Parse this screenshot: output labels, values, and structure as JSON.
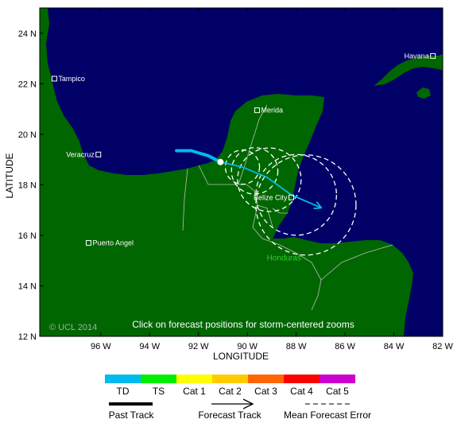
{
  "map": {
    "lon_range": [
      -98.5,
      -82
    ],
    "lat_range": [
      12,
      25
    ],
    "axes": {
      "xlabel": "LONGITUDE",
      "ylabel": "LATITUDE",
      "x_ticks": [
        {
          "value": -96,
          "label": "96 W"
        },
        {
          "value": -94,
          "label": "94 W"
        },
        {
          "value": -92,
          "label": "92 W"
        },
        {
          "value": -90,
          "label": "90 W"
        },
        {
          "value": -88,
          "label": "88 W"
        },
        {
          "value": -86,
          "label": "86 W"
        },
        {
          "value": -84,
          "label": "84 W"
        },
        {
          "value": -82,
          "label": "82 W"
        }
      ],
      "y_ticks": [
        {
          "value": 24,
          "label": "24 N"
        },
        {
          "value": 22,
          "label": "22 N"
        },
        {
          "value": 20,
          "label": "20 N"
        },
        {
          "value": 18,
          "label": "18 N"
        },
        {
          "value": 16,
          "label": "16 N"
        },
        {
          "value": 14,
          "label": "14 N"
        },
        {
          "value": 12,
          "label": "12 N"
        }
      ]
    },
    "colors": {
      "ocean": "#000066",
      "land": "#006600",
      "border": "#bbbbbb",
      "track": "#00bbee",
      "country_label": "#33cc33"
    },
    "cities": [
      {
        "name": "Havana",
        "lon": -82.4,
        "lat": 23.1,
        "label_side": "left"
      },
      {
        "name": "Tampico",
        "lon": -97.9,
        "lat": 22.2,
        "label_side": "right"
      },
      {
        "name": "Merida",
        "lon": -89.6,
        "lat": 20.95,
        "label_side": "right"
      },
      {
        "name": "Veracruz",
        "lon": -96.1,
        "lat": 19.2,
        "label_side": "left"
      },
      {
        "name": "Belize City",
        "lon": -88.2,
        "lat": 17.5,
        "label_side": "left"
      },
      {
        "name": "Puerto Angel",
        "lon": -96.5,
        "lat": 15.7,
        "label_side": "right"
      }
    ],
    "country_labels": [
      {
        "name": "Honduras",
        "lon": -88.5,
        "lat": 15.0
      }
    ],
    "past_track": [
      {
        "lon": -92.9,
        "lat": 19.35
      },
      {
        "lon": -92.3,
        "lat": 19.35
      },
      {
        "lon": -91.6,
        "lat": 19.15
      },
      {
        "lon": -91.1,
        "lat": 18.9
      }
    ],
    "forecast_track": [
      {
        "lon": -91.1,
        "lat": 18.9
      },
      {
        "lon": -90.2,
        "lat": 18.7
      },
      {
        "lon": -89.2,
        "lat": 18.3
      },
      {
        "lon": -88.2,
        "lat": 17.6
      },
      {
        "lon": -87.0,
        "lat": 17.1
      }
    ],
    "current_position": {
      "lon": -91.1,
      "lat": 18.9
    },
    "error_cones": [
      {
        "lon": -90.2,
        "lat": 18.7,
        "r_deg": 0.7
      },
      {
        "lon": -89.7,
        "lat": 18.55,
        "r_deg": 0.95
      },
      {
        "lon": -89.1,
        "lat": 18.2,
        "r_deg": 1.3
      },
      {
        "lon": -88.0,
        "lat": 17.6,
        "r_deg": 1.65
      },
      {
        "lon": -87.6,
        "lat": 17.2,
        "r_deg": 2.05
      }
    ],
    "copyright": "© UCL 2014",
    "instruction": "Click on forecast positions for storm-centered zooms"
  },
  "legend": {
    "categories": [
      {
        "label": "TD",
        "color": "#00bbee"
      },
      {
        "label": "TS",
        "color": "#00ee00"
      },
      {
        "label": "Cat 1",
        "color": "#ffff00"
      },
      {
        "label": "Cat 2",
        "color": "#ffcc00"
      },
      {
        "label": "Cat 3",
        "color": "#ff6600"
      },
      {
        "label": "Cat 4",
        "color": "#ff0000"
      },
      {
        "label": "Cat 5",
        "color": "#cc00cc"
      }
    ],
    "past_track_label": "Past Track",
    "forecast_track_label": "Forecast Track",
    "mean_error_label": "Mean Forecast Error"
  }
}
